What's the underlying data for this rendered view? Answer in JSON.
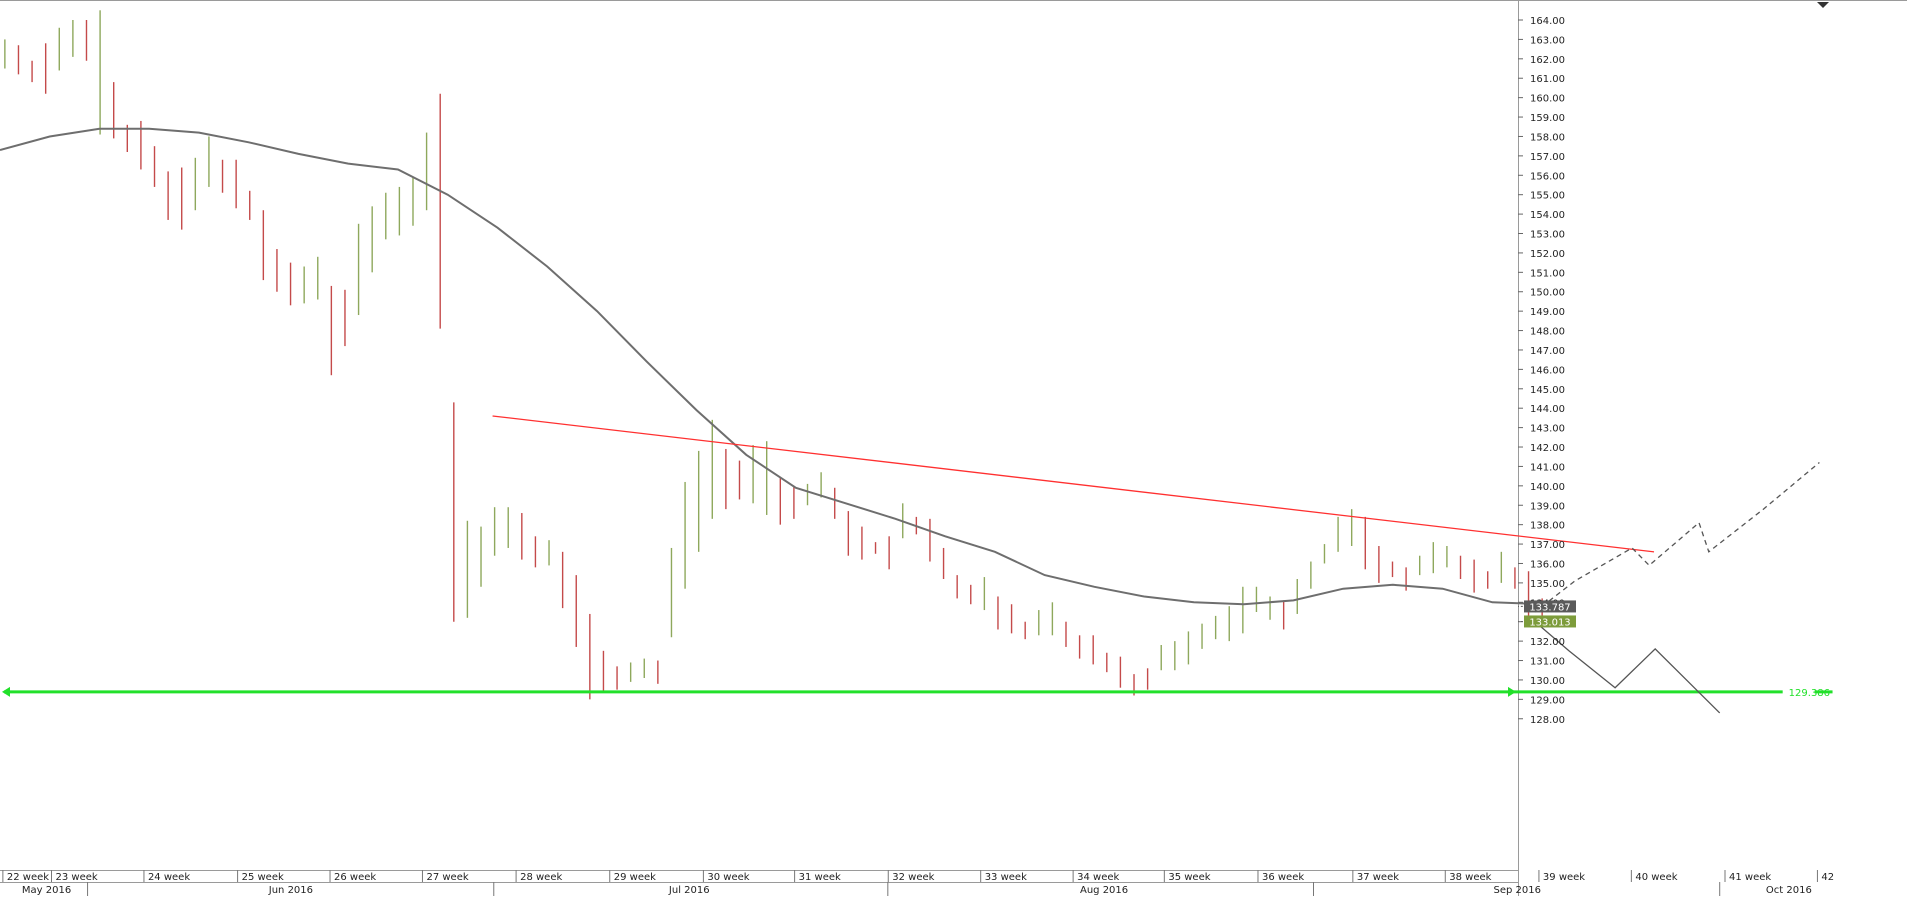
{
  "chart_data": {
    "type": "line",
    "title": "",
    "xlabel": "",
    "ylabel": "",
    "ylim": [
      127.6,
      164.8
    ],
    "y_ticks": [
      "164.00",
      "163.00",
      "162.00",
      "161.00",
      "160.00",
      "159.00",
      "158.00",
      "157.00",
      "156.00",
      "155.00",
      "154.00",
      "153.00",
      "152.00",
      "151.00",
      "150.00",
      "149.00",
      "148.00",
      "147.00",
      "146.00",
      "145.00",
      "144.00",
      "143.00",
      "142.00",
      "141.00",
      "140.00",
      "139.00",
      "138.00",
      "137.00",
      "136.00",
      "135.00",
      "134.00",
      "133.00",
      "132.00",
      "131.00",
      "130.00",
      "129.00",
      "128.00"
    ],
    "week_labels": [
      "22 week",
      "23 week",
      "24 week",
      "25 week",
      "26 week",
      "27 week",
      "28 week",
      "29 week",
      "30 week",
      "31 week",
      "32 week",
      "33 week",
      "34 week",
      "35 week",
      "36 week",
      "37 week",
      "38 week",
      "39 week",
      "40 week",
      "41 week",
      "42"
    ],
    "month_labels": [
      "May 2016",
      "Jun 2016",
      "Jul 2016",
      "Aug 2016",
      "Sep 2016",
      "Oct 2016"
    ],
    "price_badges": [
      {
        "label": "133.787",
        "value": 133.787,
        "color": "#5a5a5a"
      },
      {
        "label": "133.013",
        "value": 133.013,
        "color": "#7d9c3b"
      }
    ],
    "support_level": {
      "label": "129.386",
      "value": 129.386,
      "color": "#22e02a"
    },
    "resistance_line": {
      "color": "#ff3030",
      "start_value": 143.6,
      "end_value": 136.6
    },
    "moving_average": {
      "color": "#6e6e6e",
      "values": [
        157.3,
        158.0,
        158.4,
        158.4,
        158.2,
        157.7,
        157.1,
        156.6,
        156.3,
        155.0,
        153.3,
        151.3,
        149.0,
        146.4,
        143.9,
        141.6,
        139.9,
        139.1,
        138.3,
        137.4,
        136.6,
        135.4,
        134.8,
        134.3,
        134.0,
        133.9,
        134.1,
        134.7,
        134.9,
        134.7,
        134.0,
        133.9
      ]
    },
    "bars": {
      "up_color": "#8ea85c",
      "down_color": "#c44a4a",
      "close": [
        162.4,
        162.0,
        161.4,
        160.9,
        162.2,
        163.0,
        162.6,
        163.8,
        159.6,
        158.0,
        157.7,
        156.5,
        155.6,
        154.3,
        155.2,
        156.6,
        156.0,
        155.8,
        154.6,
        153.7,
        151.3,
        150.2,
        150.3,
        150.8,
        149.2,
        148.4,
        149.6,
        151.2,
        153.4,
        153.9,
        154.2,
        155.5,
        155.0,
        133.9,
        134.2,
        136.2,
        137.7,
        138.0,
        137.5,
        136.4,
        136.7,
        136.2,
        134.8,
        133.0,
        130.7,
        129.6,
        130.3,
        130.9,
        130.3,
        133.1,
        135.8,
        138.0,
        141.2,
        140.0,
        139.9,
        140.2,
        140.3,
        139.1,
        138.5,
        139.7,
        140.1,
        139.4,
        138.6,
        137.7,
        137.2,
        136.9,
        138.6,
        138.2,
        137.8,
        136.5,
        135.2,
        134.6,
        134.8,
        134.0,
        133.3,
        132.7,
        132.7,
        133.4,
        132.4,
        131.8,
        131.5,
        131.4,
        130.8,
        129.9,
        129.6,
        130.7,
        130.8,
        131.3,
        132.1,
        132.5,
        132.8,
        133.1,
        133.8,
        134.0,
        133.3,
        134.1,
        135.0,
        136.3,
        137.1,
        137.8,
        137.0,
        135.7,
        135.6,
        135.1,
        135.8,
        135.8,
        136.5,
        135.8,
        135.6,
        134.9,
        135.6,
        135.2,
        135.0,
        133.2
      ],
      "high": [
        163.0,
        162.7,
        161.9,
        162.8,
        163.6,
        164.0,
        164.0,
        164.5,
        160.8,
        158.6,
        158.8,
        157.5,
        156.2,
        156.4,
        156.9,
        158.0,
        156.8,
        156.8,
        155.2,
        154.2,
        152.2,
        151.5,
        151.3,
        151.8,
        150.3,
        150.1,
        153.5,
        154.4,
        155.1,
        155.4,
        155.9,
        158.2,
        160.2,
        144.3,
        138.2,
        137.9,
        138.9,
        138.9,
        138.6,
        137.4,
        137.2,
        136.6,
        135.4,
        133.4,
        131.5,
        130.7,
        130.9,
        131.1,
        131.0,
        136.8,
        140.2,
        141.8,
        143.4,
        141.9,
        141.3,
        142.1,
        142.3,
        140.4,
        140.0,
        140.1,
        140.7,
        139.9,
        138.7,
        137.9,
        137.1,
        137.4,
        139.1,
        138.4,
        138.3,
        136.8,
        135.4,
        134.9,
        135.3,
        134.3,
        133.9,
        133.0,
        133.6,
        134.0,
        133.0,
        132.3,
        132.3,
        131.4,
        131.2,
        130.3,
        130.6,
        131.8,
        132.0,
        132.5,
        132.9,
        133.3,
        133.8,
        134.8,
        134.8,
        134.3,
        134.1,
        135.2,
        136.1,
        137.0,
        138.4,
        138.8,
        138.4,
        136.9,
        136.1,
        135.8,
        136.4,
        137.1,
        136.9,
        136.4,
        136.2,
        135.6,
        136.6,
        135.8,
        135.6,
        134.2
      ],
      "low": [
        161.5,
        161.2,
        160.8,
        160.2,
        161.4,
        162.1,
        161.9,
        158.1,
        157.9,
        157.2,
        156.3,
        155.4,
        153.7,
        153.2,
        154.2,
        155.4,
        155.1,
        154.3,
        153.7,
        150.6,
        150.0,
        149.3,
        149.4,
        149.6,
        145.7,
        147.2,
        148.8,
        151.0,
        152.7,
        152.9,
        153.4,
        154.2,
        148.1,
        133.0,
        133.2,
        134.8,
        136.4,
        136.8,
        136.2,
        135.8,
        135.9,
        133.7,
        131.7,
        129.0,
        129.4,
        129.5,
        129.9,
        130.1,
        129.8,
        132.2,
        134.7,
        136.6,
        138.3,
        138.8,
        139.3,
        139.1,
        138.5,
        138.0,
        138.3,
        139.0,
        139.4,
        138.3,
        136.4,
        136.2,
        136.5,
        135.7,
        137.3,
        137.5,
        136.1,
        135.2,
        134.2,
        133.9,
        133.6,
        132.6,
        132.4,
        132.1,
        132.3,
        132.3,
        131.7,
        131.1,
        130.8,
        130.4,
        129.6,
        129.2,
        129.5,
        130.5,
        130.5,
        130.8,
        131.6,
        132.1,
        132.0,
        132.4,
        133.5,
        133.1,
        132.6,
        133.4,
        134.7,
        136.0,
        136.6,
        136.9,
        135.7,
        135.0,
        135.3,
        134.6,
        135.4,
        135.5,
        135.8,
        135.2,
        134.5,
        134.7,
        135.0,
        134.7,
        133.1,
        132.7
      ]
    },
    "forecast_solid": [
      133.013,
      131.5,
      129.6,
      131.6,
      128.3
    ],
    "forecast_dashed": [
      133.5,
      135.1,
      136.8,
      135.9,
      138.1,
      136.6,
      138.8,
      141.2
    ]
  }
}
